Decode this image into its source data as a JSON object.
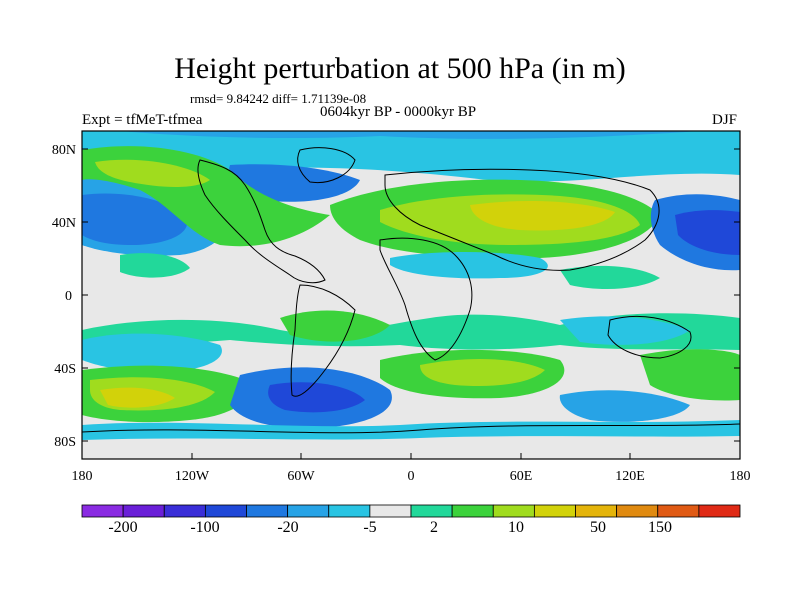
{
  "header": {
    "title": "Height perturbation at 500 hPa (in m)",
    "stats": "rmsd= 9.84242 diff= 1.71139e-08",
    "expt": "Expt = tfMeT-tfmea",
    "period": "0604kyr BP - 0000kyr BP",
    "season": "DJF"
  },
  "axes": {
    "lat_labels": [
      "80N",
      "40N",
      "0",
      "40S",
      "80S"
    ],
    "lon_labels": [
      "180",
      "120W",
      "60W",
      "0",
      "60E",
      "120E",
      "180"
    ]
  },
  "colorbar": {
    "labels": [
      "-200",
      "-100",
      "-20",
      "-5",
      "2",
      "10",
      "50",
      "150"
    ],
    "colors": [
      "#8a2be2",
      "#6a1fd8",
      "#3a2ed8",
      "#1f48d8",
      "#1f78e0",
      "#27a3e6",
      "#29c4e3",
      "#e8e8e8",
      "#22d89a",
      "#3cd23c",
      "#a0dc1e",
      "#d2d20a",
      "#e4b40a",
      "#e08a10",
      "#e05a14",
      "#e02a16"
    ]
  },
  "palette": {
    "ocean_bg": "#e8e8e8",
    "coast": "#000000"
  }
}
